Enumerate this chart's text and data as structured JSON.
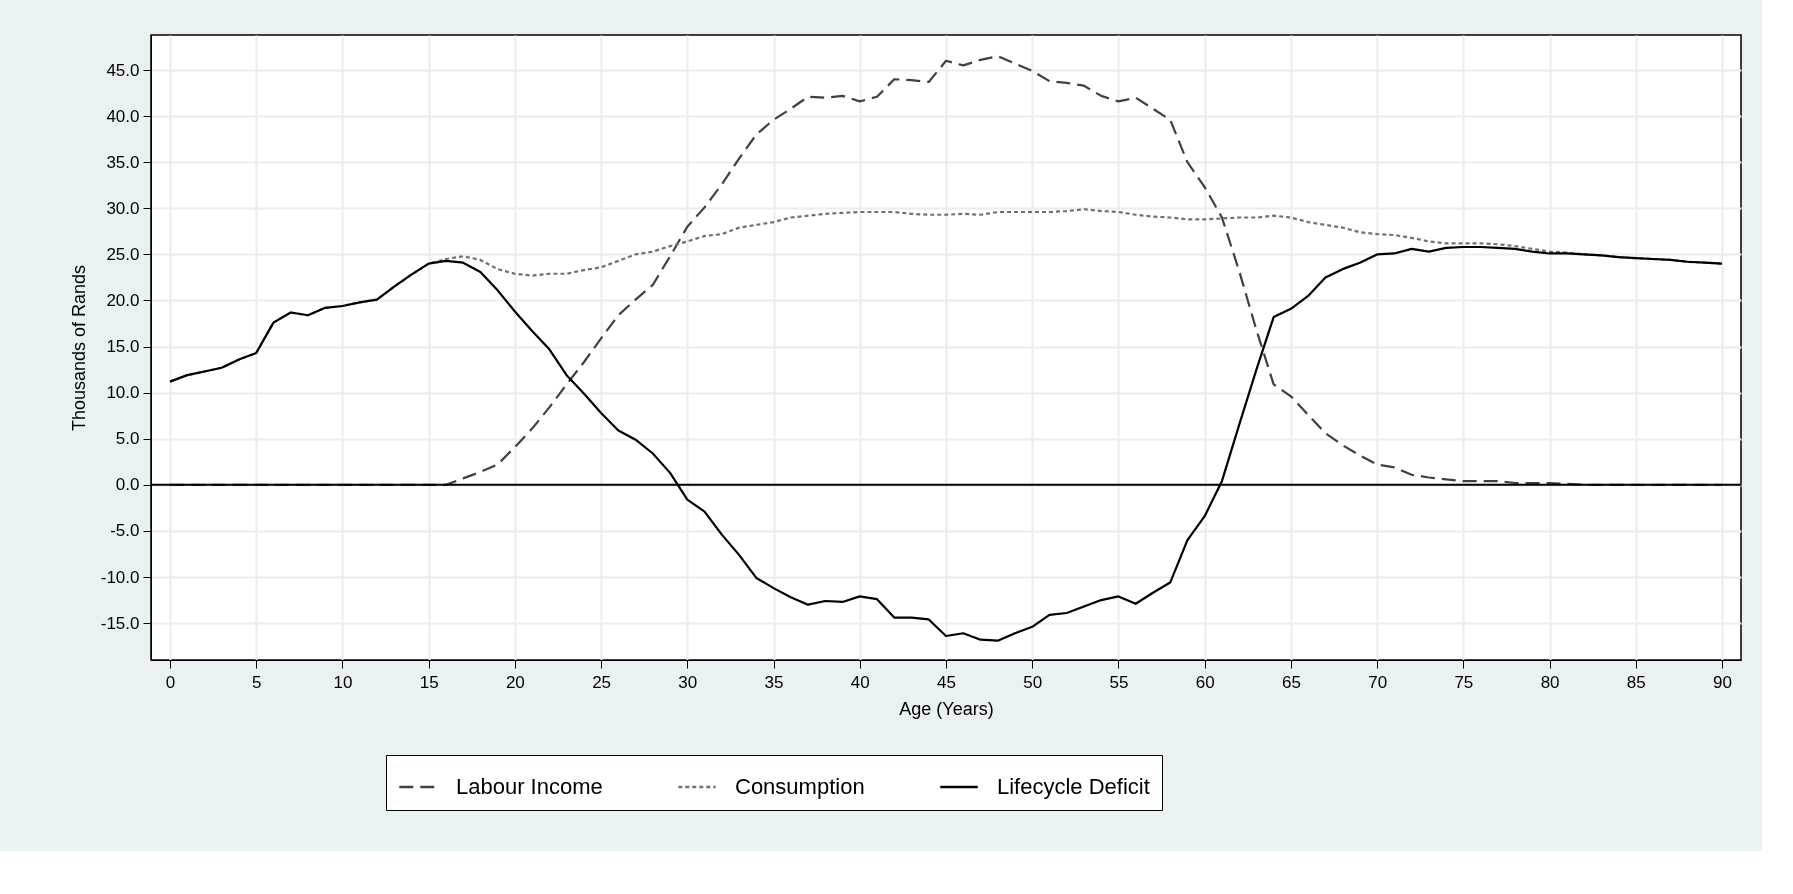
{
  "chart_data": {
    "type": "line",
    "xlabel": "Age (Years)",
    "ylabel": "Thousands of Rands",
    "x": [
      0,
      1,
      2,
      3,
      4,
      5,
      6,
      7,
      8,
      9,
      10,
      11,
      12,
      13,
      14,
      15,
      16,
      17,
      18,
      19,
      20,
      21,
      22,
      23,
      24,
      25,
      26,
      27,
      28,
      29,
      30,
      31,
      32,
      33,
      34,
      35,
      36,
      37,
      38,
      39,
      40,
      41,
      42,
      43,
      44,
      45,
      46,
      47,
      48,
      49,
      50,
      51,
      52,
      53,
      54,
      55,
      56,
      57,
      58,
      59,
      60,
      61,
      62,
      63,
      64,
      65,
      66,
      67,
      68,
      69,
      70,
      71,
      72,
      73,
      74,
      75,
      76,
      77,
      78,
      79,
      80,
      81,
      82,
      83,
      84,
      85,
      86,
      87,
      88,
      89,
      90
    ],
    "series": [
      {
        "name": "Labour Income",
        "color": "#404040",
        "line_style": "dashed",
        "values": [
          0,
          0,
          0,
          0,
          0,
          0,
          0,
          0,
          0,
          0,
          0,
          0,
          0,
          0,
          0,
          0,
          0,
          0.7,
          1.4,
          2.2,
          4.1,
          6.1,
          8.4,
          10.9,
          13.3,
          15.9,
          18.4,
          20.1,
          21.7,
          24.8,
          28.0,
          30.1,
          32.6,
          35.4,
          38.0,
          39.6,
          40.8,
          42.1,
          42.0,
          42.2,
          41.6,
          42.1,
          44.0,
          43.9,
          43.7,
          46.0,
          45.5,
          46.1,
          46.5,
          45.7,
          44.9,
          43.8,
          43.6,
          43.3,
          42.2,
          41.6,
          42.0,
          40.8,
          39.6,
          35.0,
          32.3,
          29.0,
          23.2,
          16.8,
          10.9,
          9.6,
          7.6,
          5.6,
          4.3,
          3.2,
          2.2,
          1.9,
          1.1,
          0.8,
          0.6,
          0.4,
          0.4,
          0.4,
          0.2,
          0.2,
          0.2,
          0.1,
          0,
          0,
          0,
          0,
          0,
          0,
          0,
          0,
          0
        ]
      },
      {
        "name": "Consumption",
        "color": "#707070",
        "line_style": "dotted",
        "values": [
          11.2,
          11.9,
          12.3,
          12.7,
          13.6,
          14.3,
          17.6,
          18.7,
          18.4,
          19.2,
          19.4,
          19.8,
          20.1,
          21.5,
          22.8,
          24.0,
          24.5,
          24.8,
          24.4,
          23.4,
          22.9,
          22.7,
          22.9,
          22.9,
          23.3,
          23.6,
          24.3,
          25.0,
          25.3,
          25.9,
          26.4,
          27.0,
          27.2,
          27.9,
          28.2,
          28.5,
          29.0,
          29.2,
          29.4,
          29.5,
          29.6,
          29.6,
          29.6,
          29.4,
          29.3,
          29.3,
          29.4,
          29.3,
          29.6,
          29.6,
          29.6,
          29.6,
          29.7,
          29.9,
          29.7,
          29.6,
          29.3,
          29.1,
          29.0,
          28.8,
          28.8,
          28.9,
          29.0,
          29.0,
          29.2,
          29.0,
          28.5,
          28.2,
          27.9,
          27.4,
          27.2,
          27.1,
          26.8,
          26.4,
          26.2,
          26.2,
          26.2,
          26.1,
          25.9,
          25.6,
          25.3,
          25.2,
          25.0,
          24.9,
          24.7,
          24.6,
          24.5,
          24.4,
          24.2,
          24.1,
          24.0
        ]
      },
      {
        "name": "Lifecycle Deficit",
        "color": "#000000",
        "line_style": "solid",
        "values": [
          11.2,
          11.9,
          12.3,
          12.7,
          13.6,
          14.3,
          17.6,
          18.7,
          18.4,
          19.2,
          19.4,
          19.8,
          20.1,
          21.5,
          22.8,
          24.0,
          24.3,
          24.1,
          23.1,
          21.1,
          18.8,
          16.7,
          14.7,
          11.9,
          9.9,
          7.8,
          5.9,
          4.9,
          3.4,
          1.3,
          -1.6,
          -2.9,
          -5.4,
          -7.6,
          -10.1,
          -11.2,
          -12.2,
          -13.0,
          -12.6,
          -12.7,
          -12.1,
          -12.4,
          -14.4,
          -14.4,
          -14.6,
          -16.4,
          -16.1,
          -16.8,
          -16.9,
          -16.1,
          -15.4,
          -14.1,
          -13.9,
          -13.2,
          -12.5,
          -12.1,
          -12.9,
          -11.7,
          -10.6,
          -6.0,
          -3.4,
          0.4,
          6.5,
          12.5,
          18.2,
          19.1,
          20.5,
          22.5,
          23.4,
          24.1,
          25.0,
          25.1,
          25.6,
          25.3,
          25.7,
          25.8,
          25.8,
          25.7,
          25.6,
          25.3,
          25.1,
          25.1,
          25.0,
          24.9,
          24.7,
          24.6,
          24.5,
          24.4,
          24.2,
          24.1,
          24.0
        ]
      }
    ],
    "xlim": [
      -1.1,
      91.1
    ],
    "ylim": [
      -19.0,
      48.8
    ],
    "xticks": [
      0,
      5,
      10,
      15,
      20,
      25,
      30,
      35,
      40,
      45,
      50,
      55,
      60,
      65,
      70,
      75,
      80,
      85,
      90
    ],
    "yticks": [
      {
        "value": -15,
        "label": "-15.0"
      },
      {
        "value": -10,
        "label": "-10.0"
      },
      {
        "value": -5,
        "label": "-5.0"
      },
      {
        "value": 0,
        "label": "0.0"
      },
      {
        "value": 5,
        "label": "5.0"
      },
      {
        "value": 10,
        "label": "10.0"
      },
      {
        "value": 15,
        "label": "15.0"
      },
      {
        "value": 20,
        "label": "20.0"
      },
      {
        "value": 25,
        "label": "25.0"
      },
      {
        "value": 30,
        "label": "30.0"
      },
      {
        "value": 35,
        "label": "35.0"
      },
      {
        "value": 40,
        "label": "40.0"
      },
      {
        "value": 45,
        "label": "45.0"
      }
    ],
    "ref_lines": [
      {
        "axis": "y",
        "value": 0,
        "color": "#000000"
      }
    ],
    "grid": true,
    "legend": "bottom"
  }
}
